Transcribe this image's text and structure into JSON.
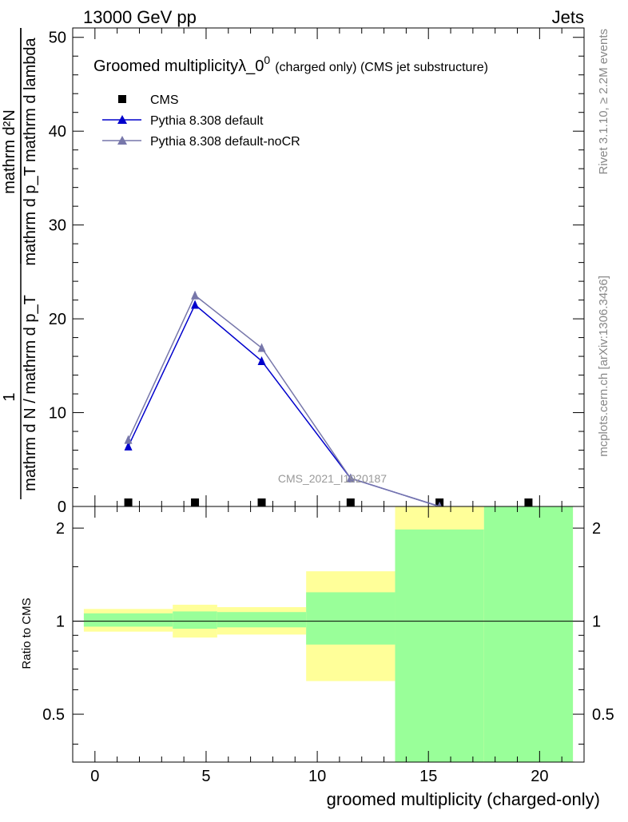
{
  "header": {
    "left": "13000 GeV pp",
    "right": "Jets"
  },
  "side": {
    "rivet": "Rivet 3.1.10, ≥ 2.2M events",
    "mcplots": "mcplots.cern.ch [arXiv:1306.3436]"
  },
  "title": {
    "main": "Groomed multiplicityλ_0",
    "sup": "0",
    "note": "(charged only) (CMS jet substructure)"
  },
  "watermark": "CMS_2021_I1920187",
  "ylabel_main": {
    "numerator": "mathrm d²N",
    "denominator": "mathrm d p_T mathrm d lambda",
    "prefix_num": "1",
    "prefix_den": "mathrm d N / mathrm d p_T"
  },
  "ylabel_ratio": "Ratio to CMS",
  "xlabel": "groomed multiplicity (charged-only)",
  "legend": [
    {
      "label": "CMS",
      "color": "#000000",
      "marker": "square"
    },
    {
      "label": "Pythia 8.308 default",
      "color": "#0000cc",
      "marker": "triangle"
    },
    {
      "label": "Pythia 8.308 default-noCR",
      "color": "#7777aa",
      "marker": "triangle"
    }
  ],
  "chart_data": {
    "type": "line",
    "xlabel": "groomed multiplicity (charged-only)",
    "ylabel": "1/(mathrm d N / mathrm d p_T) mathrm d²N/(mathrm d p_T mathrm d lambda)",
    "xlim": [
      -1,
      22
    ],
    "ylim": [
      0,
      51
    ],
    "x_ticks": [
      "0",
      "5",
      "10",
      "15",
      "20"
    ],
    "y_ticks": [
      "0",
      "10",
      "20",
      "30",
      "40",
      "50"
    ],
    "series": [
      {
        "name": "CMS",
        "color": "#000000",
        "x": [
          1.5,
          4.5,
          7.5,
          11.5,
          15.5,
          19.5
        ],
        "y": [
          0.1,
          0.2,
          0.15,
          0.1,
          0.05,
          0.05
        ]
      },
      {
        "name": "Pythia 8.308 default",
        "color": "#0000cc",
        "x": [
          1.5,
          4.5,
          7.5,
          11.5,
          15.5
        ],
        "y": [
          6.4,
          21.5,
          15.5,
          3.0,
          0.0
        ]
      },
      {
        "name": "Pythia 8.308 default-noCR",
        "color": "#7777aa",
        "x": [
          1.5,
          4.5,
          7.5,
          11.5,
          15.5
        ],
        "y": [
          7.1,
          22.5,
          16.9,
          3.0,
          0.0
        ]
      }
    ],
    "ratio": {
      "ylabel": "Ratio to CMS",
      "y_ticks": [
        "0.5",
        "1",
        "2"
      ],
      "ylim": [
        0.35,
        2.35
      ],
      "log_scale": true,
      "bands": [
        {
          "x0": -0.5,
          "x1": 3.5,
          "green": [
            0.96,
            1.06
          ],
          "yellow": [
            0.925,
            1.095
          ]
        },
        {
          "x0": 3.5,
          "x1": 5.5,
          "green": [
            0.945,
            1.075
          ],
          "yellow": [
            0.885,
            1.13
          ]
        },
        {
          "x0": 5.5,
          "x1": 9.5,
          "green": [
            0.955,
            1.07
          ],
          "yellow": [
            0.905,
            1.11
          ]
        },
        {
          "x0": 9.5,
          "x1": 13.5,
          "green": [
            0.84,
            1.24
          ],
          "yellow": [
            0.64,
            1.45
          ]
        },
        {
          "x0": 13.5,
          "x1": 17.5,
          "green": [
            0.35,
            1.98
          ],
          "yellow": [
            0.35,
            2.35
          ]
        },
        {
          "x0": 17.5,
          "x1": 21.5,
          "green": [
            0.35,
            2.35
          ],
          "yellow": [
            0.35,
            2.35
          ]
        }
      ]
    }
  }
}
